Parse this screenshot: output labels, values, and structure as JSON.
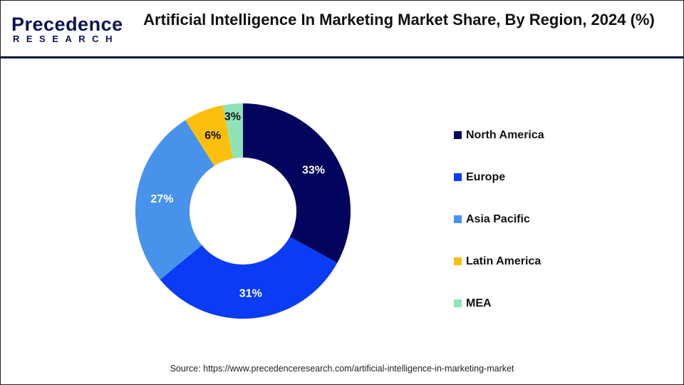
{
  "header": {
    "logo_text": "Precedence",
    "logo_subtext": "RESEARCH",
    "title": "Artificial Intelligence In Marketing Market Share, By Region, 2024 (%)"
  },
  "chart_data": {
    "type": "pie",
    "donut": true,
    "title": "Artificial Intelligence In Marketing Market Share, By Region, 2024 (%)",
    "categories": [
      "North America",
      "Europe",
      "Asia Pacific",
      "Latin America",
      "MEA"
    ],
    "values": [
      33,
      31,
      27,
      6,
      3
    ],
    "labels": [
      "33%",
      "31%",
      "27%",
      "6%",
      "3%"
    ],
    "colors": [
      "#03045e",
      "#0a3cf5",
      "#4793ec",
      "#fcbf0b",
      "#8ee3b7"
    ],
    "label_colors": [
      "#ffffff",
      "#ffffff",
      "#ffffff",
      "#111111",
      "#111111"
    ],
    "direction": "clockwise from top",
    "legend_position": "right"
  },
  "footer": {
    "source": "Source: https://www.precedenceresearch.com/artificial-intelligence-in-marketing-market"
  }
}
